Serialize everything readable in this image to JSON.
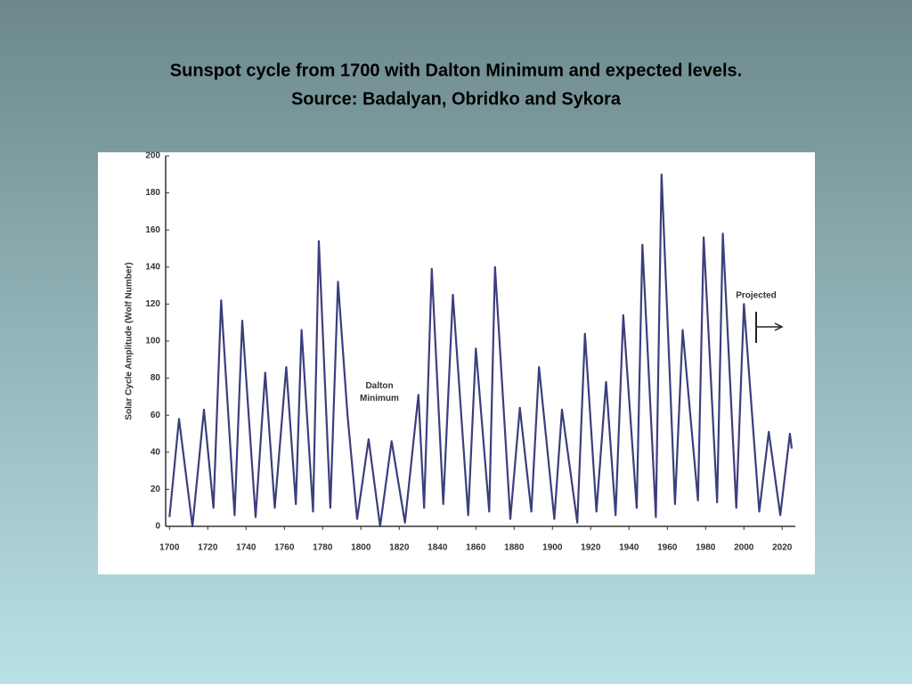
{
  "chart_data": {
    "type": "line",
    "title": "Sunspot cycle from 1700 with Dalton Minimum and expected levels.",
    "subtitle": "Source: Badalyan, Obridko and Sykora",
    "y_label": "Solar Cycle Amplitude (Wolf Number)",
    "annotations": [
      "Dalton Minimum",
      "Projected"
    ],
    "color": "#3b3f7c",
    "x": [
      1700,
      1705,
      1712,
      1718,
      1723,
      1727,
      1734,
      1738,
      1745,
      1750,
      1755,
      1761,
      1766,
      1769,
      1775,
      1778,
      1784,
      1788,
      1793,
      1798,
      1804,
      1810,
      1816,
      1823,
      1830,
      1833,
      1837,
      1843,
      1848,
      1856,
      1860,
      1867,
      1870,
      1878,
      1883,
      1889,
      1893,
      1901,
      1905,
      1913,
      1917,
      1923,
      1928,
      1933,
      1937,
      1944,
      1947,
      1954,
      1957,
      1964,
      1968,
      1976,
      1979,
      1986,
      1989,
      1996,
      2000,
      2008,
      2013,
      2019,
      2024,
      2025
    ],
    "values": [
      5,
      58,
      0,
      63,
      10,
      122,
      6,
      111,
      5,
      83,
      10,
      86,
      12,
      106,
      8,
      154,
      10,
      132,
      60,
      4,
      47,
      0,
      46,
      2,
      71,
      10,
      139,
      12,
      125,
      6,
      96,
      8,
      140,
      4,
      64,
      8,
      86,
      4,
      63,
      2,
      104,
      8,
      78,
      6,
      114,
      10,
      152,
      5,
      190,
      12,
      106,
      14,
      156,
      13,
      158,
      10,
      120,
      8,
      51,
      6,
      50,
      42
    ],
    "xlim": [
      1698,
      2025
    ],
    "xticks": [
      1700,
      1720,
      1740,
      1760,
      1780,
      1800,
      1820,
      1840,
      1860,
      1880,
      1900,
      1920,
      1940,
      1960,
      1980,
      2000,
      2020
    ],
    "ylim": [
      0,
      200
    ],
    "yticks": [
      0,
      20,
      40,
      60,
      80,
      100,
      120,
      140,
      160,
      180,
      200
    ],
    "grid": false
  }
}
